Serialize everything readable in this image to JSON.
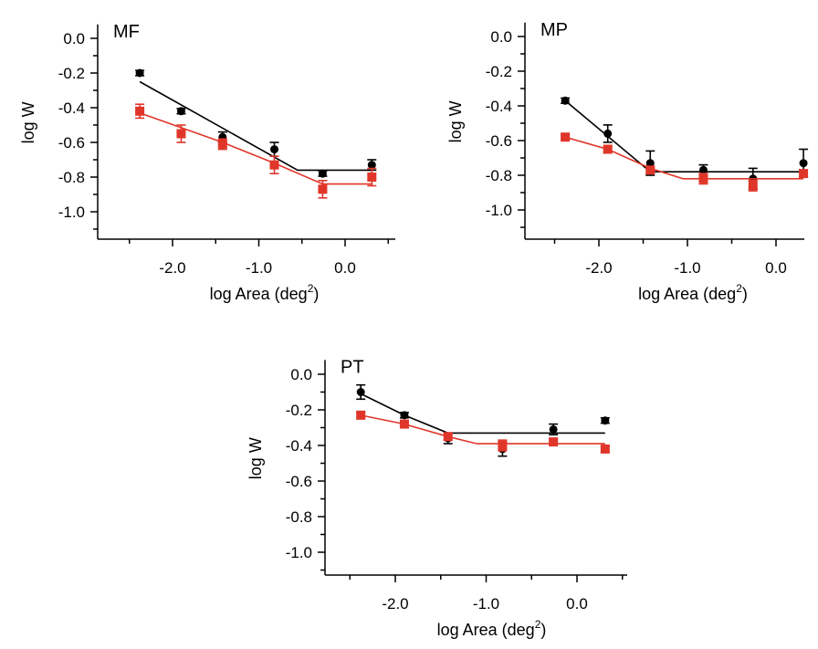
{
  "chart_data": [
    {
      "type": "scatter",
      "title": "MF",
      "xlabel": "log Area (deg",
      "xlabel_sup": "2",
      "xlabel_end": ")",
      "ylabel": "log W",
      "xlim": [
        -2.6,
        0.55
      ],
      "ylim": [
        -1.16,
        0.08
      ],
      "xticks": [
        -2.0,
        -1.0,
        0.0
      ],
      "xtick_labels": [
        "-2.0",
        "-1.0",
        "0.0"
      ],
      "yticks": [
        0.0,
        -0.2,
        -0.4,
        -0.6,
        -0.8,
        -1.0
      ],
      "ytick_labels": [
        "0.0",
        "-0.2",
        "-0.4",
        "-0.6",
        "-0.8",
        "-1.0"
      ],
      "series": [
        {
          "color": "#000000",
          "marker": "circle",
          "x": [
            -2.38,
            -1.9,
            -1.42,
            -0.82,
            -0.26,
            0.31
          ],
          "y": [
            -0.2,
            -0.42,
            -0.57,
            -0.64,
            -0.78,
            -0.73
          ],
          "err": [
            0.015,
            0.015,
            0.03,
            0.04,
            0.015,
            0.03
          ],
          "fit": {
            "x": [
              -2.38,
              -0.55,
              0.31
            ],
            "y": [
              -0.25,
              -0.76,
              -0.76
            ]
          }
        },
        {
          "color": "#e0362a",
          "marker": "square",
          "x": [
            -2.38,
            -1.9,
            -1.42,
            -0.82,
            -0.26,
            0.31
          ],
          "y": [
            -0.42,
            -0.55,
            -0.61,
            -0.73,
            -0.87,
            -0.8
          ],
          "err": [
            0.04,
            0.05,
            0.03,
            0.05,
            0.05,
            0.05
          ],
          "fit": {
            "x": [
              -2.38,
              -1.42,
              -0.82,
              -0.26,
              0.31
            ],
            "y": [
              -0.43,
              -0.6,
              -0.72,
              -0.84,
              -0.84
            ]
          }
        }
      ]
    },
    {
      "type": "scatter",
      "title": "MP",
      "xlabel": "log Area (deg",
      "xlabel_sup": "2",
      "xlabel_end": ")",
      "ylabel": "log W",
      "xlim": [
        -2.6,
        0.55
      ],
      "ylim": [
        -1.16,
        0.08
      ],
      "xticks": [
        -2.0,
        -1.0,
        0.0
      ],
      "xtick_labels": [
        "-2.0",
        "-1.0",
        "0.0"
      ],
      "yticks": [
        0.0,
        -0.2,
        -0.4,
        -0.6,
        -0.8,
        -1.0
      ],
      "ytick_labels": [
        "0.0",
        "-0.2",
        "-0.4",
        "-0.6",
        "-0.8",
        "-1.0"
      ],
      "series": [
        {
          "color": "#000000",
          "marker": "circle",
          "x": [
            -2.38,
            -1.9,
            -1.42,
            -0.82,
            -0.26,
            0.31
          ],
          "y": [
            -0.37,
            -0.56,
            -0.73,
            -0.77,
            -0.82,
            -0.73
          ],
          "err": [
            0.015,
            0.05,
            0.07,
            0.03,
            0.06,
            0.08
          ],
          "fit": {
            "x": [
              -2.38,
              -1.42,
              0.31
            ],
            "y": [
              -0.37,
              -0.78,
              -0.78
            ]
          }
        },
        {
          "color": "#e0362a",
          "marker": "square",
          "x": [
            -2.38,
            -1.9,
            -1.42,
            -0.82,
            -0.26,
            0.31
          ],
          "y": [
            -0.58,
            -0.65,
            -0.77,
            -0.82,
            -0.86,
            -0.79
          ],
          "err": [
            0.015,
            0.02,
            0.02,
            0.03,
            0.03,
            0.02
          ],
          "fit": {
            "x": [
              -2.38,
              -1.9,
              -1.42,
              -1.05,
              0.31
            ],
            "y": [
              -0.58,
              -0.65,
              -0.76,
              -0.82,
              -0.82
            ]
          }
        }
      ]
    },
    {
      "type": "scatter",
      "title": "PT",
      "xlabel": "log Area (deg",
      "xlabel_sup": "2",
      "xlabel_end": ")",
      "ylabel": "log W",
      "xlim": [
        -2.6,
        0.55
      ],
      "ylim": [
        -1.16,
        0.08
      ],
      "xticks": [
        -2.0,
        -1.0,
        0.0
      ],
      "xtick_labels": [
        "-2.0",
        "-1.0",
        "0.0"
      ],
      "yticks": [
        0.0,
        -0.2,
        -0.4,
        -0.6,
        -0.8,
        -1.0
      ],
      "ytick_labels": [
        "0.0",
        "-0.2",
        "-0.4",
        "-0.6",
        "-0.8",
        "-1.0"
      ],
      "series": [
        {
          "color": "#000000",
          "marker": "circle",
          "x": [
            -2.38,
            -1.9,
            -1.42,
            -0.82,
            -0.26,
            0.31
          ],
          "y": [
            -0.1,
            -0.23,
            -0.36,
            -0.42,
            -0.31,
            -0.26
          ],
          "err": [
            0.04,
            0.015,
            0.03,
            0.04,
            0.03,
            0.015
          ],
          "fit": {
            "x": [
              -2.38,
              -1.9,
              -1.42,
              0.31
            ],
            "y": [
              -0.11,
              -0.23,
              -0.33,
              -0.33
            ]
          }
        },
        {
          "color": "#e0362a",
          "marker": "square",
          "x": [
            -2.38,
            -1.9,
            -1.42,
            -0.82,
            -0.26,
            0.31
          ],
          "y": [
            -0.23,
            -0.28,
            -0.35,
            -0.4,
            -0.38,
            -0.42
          ],
          "err": [
            0.02,
            0.015,
            0.02,
            0.03,
            0.015,
            0.015
          ],
          "fit": {
            "x": [
              -2.38,
              -1.9,
              -1.42,
              -1.1,
              0.31
            ],
            "y": [
              -0.23,
              -0.28,
              -0.35,
              -0.39,
              -0.39
            ]
          }
        }
      ]
    }
  ]
}
